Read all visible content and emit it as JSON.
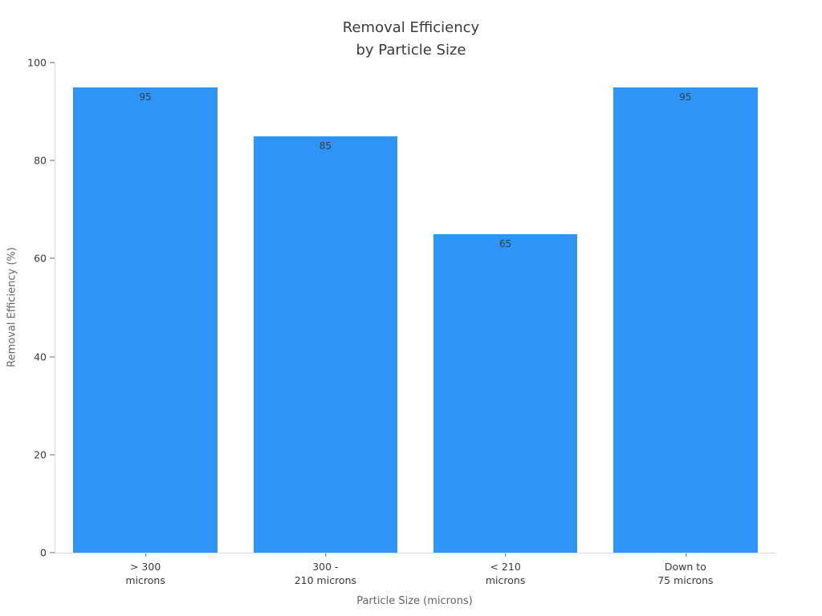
{
  "chart_data": {
    "type": "bar",
    "title": "Removal Efficiency\nby Particle Size",
    "categories": [
      "> 300\nmicrons",
      "300 -\n210 microns",
      "< 210\nmicrons",
      "Down to\n75 microns"
    ],
    "values": [
      95,
      85,
      65,
      95
    ],
    "bar_labels": [
      "95",
      "85",
      "65",
      "95"
    ],
    "xlabel": "Particle Size (microns)",
    "ylabel": "Removal Efficiency (%)",
    "ylim": [
      0,
      100
    ],
    "yticks": [
      0,
      20,
      40,
      60,
      80,
      100
    ],
    "grid": false,
    "legend": null,
    "bar_color": "#2E94F6",
    "colors": {
      "accent": "#2E94F6",
      "title_text": "#3a3a3a",
      "tick_text": "#3a3a3a",
      "axis_label_text": "#666666",
      "spine": "#d9d9d9",
      "value_label_text": "#33404d"
    }
  }
}
